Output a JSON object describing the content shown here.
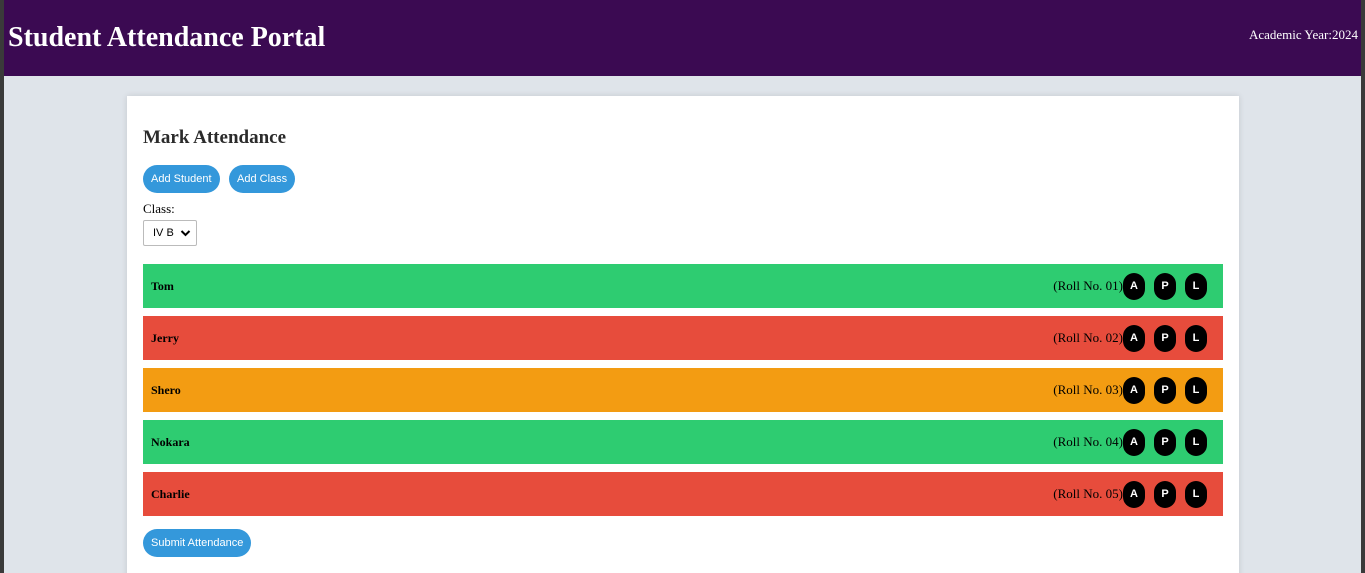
{
  "header": {
    "title": "Student Attendance Portal",
    "academic_year": "Academic Year:2024"
  },
  "card": {
    "heading": "Mark Attendance",
    "add_student_label": "Add Student",
    "add_class_label": "Add Class",
    "class_label": "Class:",
    "class_selected": "IV B",
    "submit_label": "Submit Attendance"
  },
  "attendance_buttons": [
    "A",
    "P",
    "L"
  ],
  "colors": {
    "present": "#2ecc71",
    "absent": "#e74c3c",
    "late": "#f39c12",
    "header_bg": "#3b0a52",
    "primary_button": "#3498db"
  },
  "students": [
    {
      "name": "Tom",
      "roll": "(Roll No. 01)",
      "status": "present"
    },
    {
      "name": "Jerry",
      "roll": "(Roll No. 02)",
      "status": "absent"
    },
    {
      "name": "Shero",
      "roll": "(Roll No. 03)",
      "status": "late"
    },
    {
      "name": "Nokara",
      "roll": "(Roll No. 04)",
      "status": "present"
    },
    {
      "name": "Charlie",
      "roll": "(Roll No. 05)",
      "status": "absent"
    }
  ]
}
